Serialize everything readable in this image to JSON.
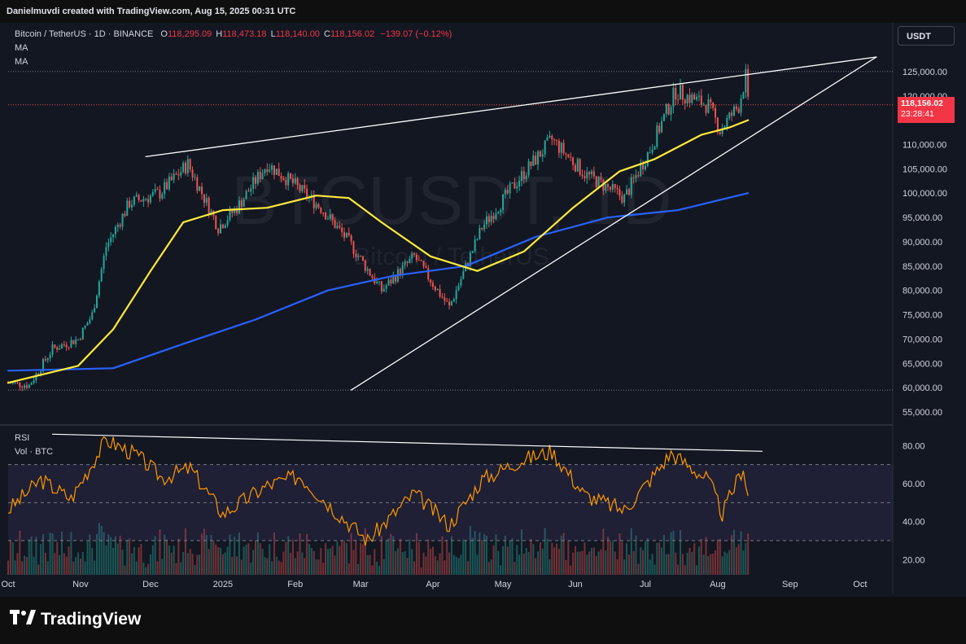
{
  "credit": "Danielmuvdi created with TradingView.com, Aug 15, 2025 00:31 UTC",
  "legend": {
    "symbol": "Bitcoin / TetherUS · 1D · BINANCE",
    "o_label": "O",
    "o_value": "118,295.09",
    "h_label": "H",
    "h_value": "118,473.18",
    "l_label": "L",
    "l_value": "118,140.00",
    "c_label": "C",
    "c_value": "118,156.02",
    "change": "−139.07 (−0.12%)",
    "ma1": "MA",
    "ma2": "MA",
    "rsi": "RSI",
    "vol": "Vol · BTC"
  },
  "watermark": {
    "big": "BTCUSDT, 1D",
    "small": "Bitcoin / TetherUS"
  },
  "currency_button": "USDT",
  "price_tag": {
    "price": "118,156.02",
    "countdown": "23:28:41"
  },
  "footer_brand": "TradingView",
  "colors": {
    "background": "#131722",
    "up": "#26a69a",
    "down": "#ef5350",
    "ma_short": "#ffeb3b",
    "ma_long": "#2962ff",
    "rsi": "#ff9800",
    "trendline": "#ffffff",
    "rsi_band": "#7e57c2"
  },
  "chart_data": [
    {
      "type": "candlestick",
      "title": "",
      "y_axis": {
        "ticks": [
          "125,000.00",
          "120,000.00",
          "110,000.00",
          "105,000.00",
          "100,000.00",
          "95,000.00",
          "90,000.00",
          "85,000.00",
          "80,000.00",
          "75,000.00",
          "70,000.00",
          "65,000.00",
          "60,000.00",
          "55,000.00"
        ],
        "range": [
          54000,
          128000
        ]
      },
      "x_axis": {
        "ticks": [
          "Oct",
          "Nov",
          "Dec",
          "2025",
          "Feb",
          "Mar",
          "Apr",
          "May",
          "Jun",
          "Jul",
          "Aug",
          "Sep",
          "Oct"
        ],
        "range": [
          "2024-10-01",
          "2025-10-15"
        ]
      },
      "last_close": 118156.02,
      "series": [
        {
          "name": "BTCUSDT",
          "kind": "price_path",
          "points": [
            [
              "2024-10-01",
              61000
            ],
            [
              "2024-10-10",
              60500
            ],
            [
              "2024-10-20",
              68000
            ],
            [
              "2024-10-31",
              70000
            ],
            [
              "2024-11-06",
              75000
            ],
            [
              "2024-11-12",
              89000
            ],
            [
              "2024-11-22",
              98000
            ],
            [
              "2024-12-05",
              100000
            ],
            [
              "2024-12-17",
              106000
            ],
            [
              "2024-12-30",
              93000
            ],
            [
              "2025-01-07",
              97000
            ],
            [
              "2025-01-20",
              106000
            ],
            [
              "2025-01-31",
              102000
            ],
            [
              "2025-02-12",
              97000
            ],
            [
              "2025-02-24",
              90000
            ],
            [
              "2025-03-10",
              80000
            ],
            [
              "2025-03-24",
              87000
            ],
            [
              "2025-04-08",
              76500
            ],
            [
              "2025-04-22",
              93000
            ],
            [
              "2025-05-08",
              103000
            ],
            [
              "2025-05-22",
              111000
            ],
            [
              "2025-06-05",
              104000
            ],
            [
              "2025-06-22",
              99000
            ],
            [
              "2025-07-03",
              109000
            ],
            [
              "2025-07-14",
              121000
            ],
            [
              "2025-07-28",
              118000
            ],
            [
              "2025-08-02",
              113000
            ],
            [
              "2025-08-10",
              118000
            ],
            [
              "2025-08-13",
              124000
            ],
            [
              "2025-08-14",
              118156
            ]
          ]
        },
        {
          "name": "MA",
          "color": "#ffeb3b",
          "points": [
            [
              "2024-10-01",
              61000
            ],
            [
              "2024-10-31",
              64500
            ],
            [
              "2024-11-15",
              72000
            ],
            [
              "2024-12-01",
              84000
            ],
            [
              "2024-12-15",
              94000
            ],
            [
              "2025-01-01",
              96500
            ],
            [
              "2025-01-20",
              97000
            ],
            [
              "2025-02-10",
              99500
            ],
            [
              "2025-02-24",
              99000
            ],
            [
              "2025-03-10",
              94000
            ],
            [
              "2025-03-31",
              87000
            ],
            [
              "2025-04-20",
              84000
            ],
            [
              "2025-05-10",
              88000
            ],
            [
              "2025-05-31",
              97000
            ],
            [
              "2025-06-20",
              104500
            ],
            [
              "2025-07-05",
              107000
            ],
            [
              "2025-07-25",
              112000
            ],
            [
              "2025-08-06",
              113500
            ],
            [
              "2025-08-14",
              115000
            ]
          ]
        },
        {
          "name": "MA",
          "color": "#2962ff",
          "points": [
            [
              "2024-10-01",
              63500
            ],
            [
              "2024-11-15",
              64000
            ],
            [
              "2024-12-15",
              69000
            ],
            [
              "2025-01-15",
              74000
            ],
            [
              "2025-02-15",
              80000
            ],
            [
              "2025-03-15",
              83000
            ],
            [
              "2025-04-15",
              85000
            ],
            [
              "2025-05-15",
              91000
            ],
            [
              "2025-06-15",
              95000
            ],
            [
              "2025-07-15",
              96500
            ],
            [
              "2025-08-14",
              100000
            ]
          ]
        },
        {
          "name": "upper trendline",
          "color": "#ffffff",
          "points": [
            [
              "2024-11-29",
              107500
            ],
            [
              "2025-10-08",
              128000
            ]
          ]
        },
        {
          "name": "lower trendline",
          "color": "#ffffff",
          "points": [
            [
              "2025-02-25",
              59500
            ],
            [
              "2025-10-08",
              128000
            ]
          ]
        }
      ],
      "reference_lines": [
        125000,
        59500
      ]
    },
    {
      "type": "line",
      "title": "",
      "y_axis": {
        "ticks": [
          "80.00",
          "60.00",
          "40.00",
          "20.00"
        ],
        "range": [
          12,
          90
        ]
      },
      "bands": {
        "overbought": 70,
        "middle": 50,
        "oversold": 30
      },
      "series": [
        {
          "name": "RSI",
          "color": "#ff9800",
          "points": [
            [
              "2024-10-01",
              46
            ],
            [
              "2024-10-15",
              62
            ],
            [
              "2024-10-28",
              52
            ],
            [
              "2024-11-12",
              83
            ],
            [
              "2024-11-25",
              75
            ],
            [
              "2024-12-06",
              63
            ],
            [
              "2024-12-18",
              68
            ],
            [
              "2025-01-01",
              44
            ],
            [
              "2025-01-20",
              59
            ],
            [
              "2025-02-03",
              64
            ],
            [
              "2025-02-18",
              46
            ],
            [
              "2025-03-04",
              30
            ],
            [
              "2025-03-24",
              55
            ],
            [
              "2025-04-08",
              38
            ],
            [
              "2025-04-22",
              62
            ],
            [
              "2025-05-08",
              72
            ],
            [
              "2025-05-22",
              77
            ],
            [
              "2025-06-05",
              54
            ],
            [
              "2025-06-22",
              46
            ],
            [
              "2025-07-03",
              62
            ],
            [
              "2025-07-12",
              76
            ],
            [
              "2025-07-28",
              62
            ],
            [
              "2025-08-03",
              44
            ],
            [
              "2025-08-12",
              69
            ],
            [
              "2025-08-14",
              53
            ]
          ]
        },
        {
          "name": "RSI trendline",
          "color": "#ffffff",
          "points": [
            [
              "2024-10-20",
              86
            ],
            [
              "2025-08-20",
              77
            ]
          ]
        }
      ]
    }
  ]
}
